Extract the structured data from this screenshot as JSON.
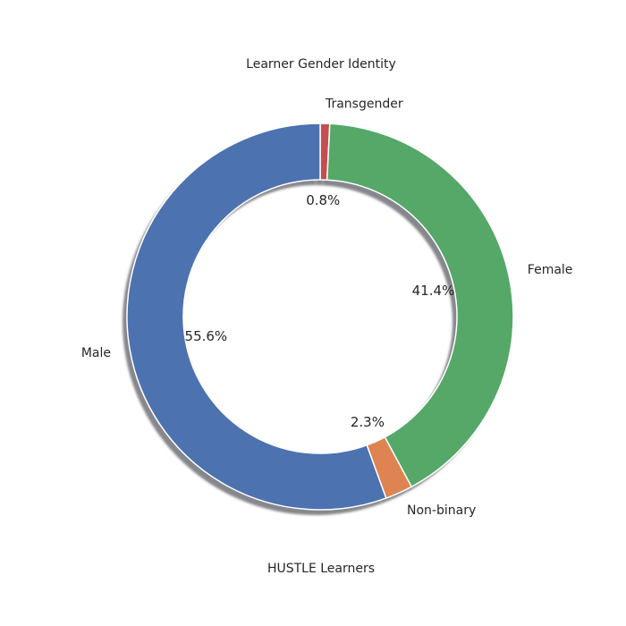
{
  "chart_data": {
    "type": "pie",
    "subtype": "donut",
    "title": "Learner Gender Identity",
    "xlabel": "HUSTLE Learners",
    "start_angle_deg": 90,
    "direction": "clockwise-from-top",
    "shadow": true,
    "slices": [
      {
        "label": "Transgender",
        "value": 0.8,
        "pct_label": "0.8%",
        "color": "#c44e52"
      },
      {
        "label": "Female",
        "value": 41.4,
        "pct_label": "41.4%",
        "color": "#55a868"
      },
      {
        "label": "Non-binary",
        "value": 2.3,
        "pct_label": "2.3%",
        "color": "#dd8452"
      },
      {
        "label": "Male",
        "value": 55.6,
        "pct_label": "55.6%",
        "color": "#4c72b0"
      }
    ]
  }
}
